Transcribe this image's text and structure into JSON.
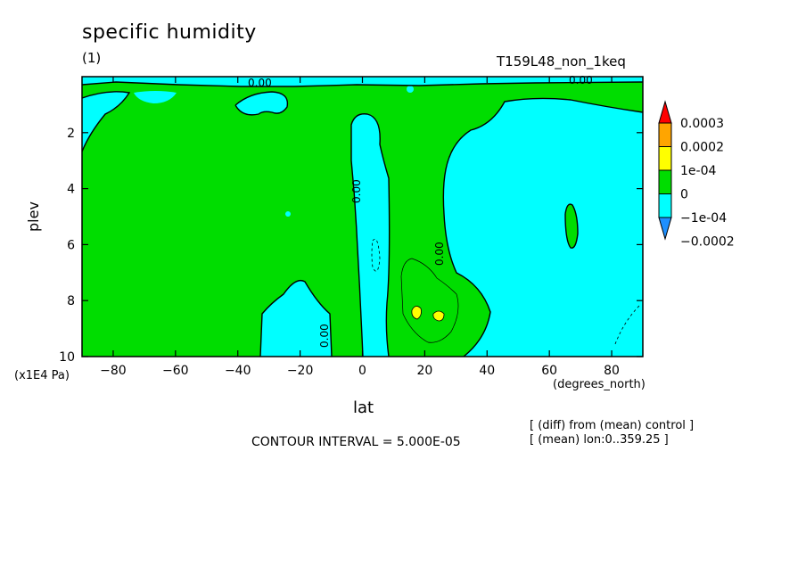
{
  "header": {
    "title": "specific humidity",
    "subtitle": "(1)",
    "run_name": "T159L48_non_1keq"
  },
  "footer": {
    "contour_interval": "CONTOUR INTERVAL = 5.000E-05",
    "note_diff": "[ (diff) from (mean) control ]",
    "note_mean": "[ (mean) lon:0..359.25 ]"
  },
  "colors": {
    "lt_neg_1e4": "#1e90ff",
    "neg_1e4_to_0": "#00ffff",
    "zero_to_1e4": "#00dd00",
    "1e4_to_2e4": "#ffff00",
    "2e4_to_3e4": "#ffa500",
    "gt_3e4": "#ff0000"
  },
  "chart_data": {
    "type": "heatmap",
    "xlabel": "lat",
    "xunit": "(degrees_north)",
    "ylabel": "plev",
    "yunit": "(x1E4 Pa)",
    "xlim": [
      -90,
      90
    ],
    "ylim": [
      10,
      0
    ],
    "x_ticks": [
      "−80",
      "−60",
      "−40",
      "−20",
      "0",
      "20",
      "40",
      "60",
      "80"
    ],
    "x_tick_values": [
      -80,
      -60,
      -40,
      -20,
      0,
      20,
      40,
      60,
      80
    ],
    "y_ticks": [
      "2",
      "4",
      "6",
      "8",
      "10"
    ],
    "y_tick_values": [
      2,
      4,
      6,
      8,
      10
    ],
    "colorbar": {
      "labels": [
        "0.0003",
        "0.0002",
        "1e-04",
        "0",
        "−1e-04",
        "−0.0002"
      ],
      "levels": [
        -0.0002,
        -0.0001,
        0,
        0.0001,
        0.0002,
        0.0003
      ]
    },
    "contour_labels": [
      "0.00",
      "0.00",
      "0.00",
      "0.00",
      "0.00"
    ]
  }
}
